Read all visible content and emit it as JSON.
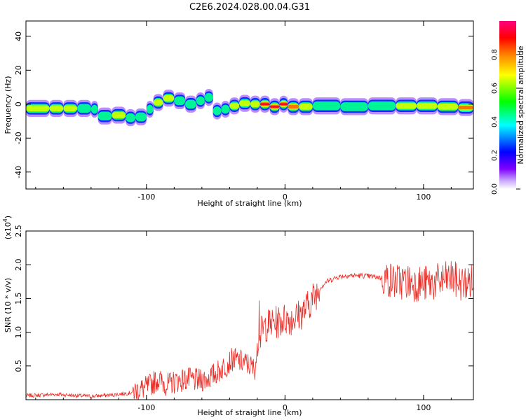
{
  "title": "C2E6.2024.028.00.04.G31",
  "chart_data": [
    {
      "type": "heatmap",
      "xlabel": "Height of straight line (km)",
      "ylabel": "Frequency (Hz)",
      "xlim": [
        -187,
        136
      ],
      "ylim": [
        -50,
        49
      ],
      "x_ticks": [
        -100,
        0,
        100
      ],
      "y_ticks": [
        -40,
        -20,
        0,
        20,
        40
      ],
      "colorbar": {
        "label": "Normalized spectral amplitude",
        "range": [
          0,
          1
        ],
        "ticks": [
          0.0,
          0.2,
          0.4,
          0.6,
          0.8
        ],
        "colors": [
          "#ffffff",
          "#7f00ff",
          "#0000ff",
          "#00ffff",
          "#00ff00",
          "#ffff00",
          "#ff8000",
          "#ff0000",
          "#ff0080"
        ]
      },
      "ridge": [
        {
          "x": -187,
          "y": -2.5,
          "a": 0.55
        },
        {
          "x": -170,
          "y": -2.5,
          "a": 0.55
        },
        {
          "x": -160,
          "y": -2.5,
          "a": 0.7
        },
        {
          "x": -150,
          "y": -2.5,
          "a": 0.5
        },
        {
          "x": -140,
          "y": -3.0,
          "a": 0.45
        },
        {
          "x": -135,
          "y": -7.0,
          "a": 0.45
        },
        {
          "x": -125,
          "y": -6.5,
          "a": 0.6
        },
        {
          "x": -115,
          "y": -8.0,
          "a": 0.5
        },
        {
          "x": -108,
          "y": -7.5,
          "a": 0.45
        },
        {
          "x": -100,
          "y": -3.0,
          "a": 0.45
        },
        {
          "x": -95,
          "y": 1.0,
          "a": 0.55
        },
        {
          "x": -88,
          "y": 3.5,
          "a": 0.55
        },
        {
          "x": -80,
          "y": 2.0,
          "a": 0.5
        },
        {
          "x": -72,
          "y": 0.0,
          "a": 0.5
        },
        {
          "x": -64,
          "y": 2.0,
          "a": 0.5
        },
        {
          "x": -58,
          "y": 4.0,
          "a": 0.45
        },
        {
          "x": -52,
          "y": -4.0,
          "a": 0.45
        },
        {
          "x": -46,
          "y": -3.0,
          "a": 0.5
        },
        {
          "x": -40,
          "y": -1.0,
          "a": 0.55
        },
        {
          "x": -33,
          "y": 0.5,
          "a": 0.6
        },
        {
          "x": -25,
          "y": 0.0,
          "a": 0.65
        },
        {
          "x": -18,
          "y": 0.0,
          "a": 0.92
        },
        {
          "x": -11,
          "y": -1.5,
          "a": 0.9
        },
        {
          "x": -4,
          "y": 0.0,
          "a": 0.92
        },
        {
          "x": 2,
          "y": -1.5,
          "a": 0.85
        },
        {
          "x": 10,
          "y": -1.5,
          "a": 0.7
        },
        {
          "x": 20,
          "y": -1.0,
          "a": 0.5
        },
        {
          "x": 40,
          "y": -1.5,
          "a": 0.48
        },
        {
          "x": 60,
          "y": -1.0,
          "a": 0.5
        },
        {
          "x": 80,
          "y": -1.0,
          "a": 0.6
        },
        {
          "x": 95,
          "y": -1.0,
          "a": 0.6
        },
        {
          "x": 110,
          "y": -1.5,
          "a": 0.55
        },
        {
          "x": 125,
          "y": -2.0,
          "a": 0.8
        },
        {
          "x": 136,
          "y": -2.0,
          "a": 0.6
        }
      ]
    },
    {
      "type": "line",
      "xlabel": "Height of straight line (km)",
      "ylabel": "SNR (10 * v/v)",
      "y_multiplier": "(x10",
      "y_multiplier_exp": "4",
      "y_multiplier_close": ")",
      "xlim": [
        -187,
        136
      ],
      "ylim": [
        0,
        2.5
      ],
      "x_ticks": [
        -100,
        0,
        100
      ],
      "y_ticks": [
        0.5,
        1.0,
        1.5,
        2.0,
        2.5
      ],
      "series": [
        {
          "color": "#e8302a",
          "points": [
            [
              -187,
              0.06
            ],
            [
              -175,
              0.07
            ],
            [
              -165,
              0.08
            ],
            [
              -150,
              0.06
            ],
            [
              -140,
              0.05
            ],
            [
              -125,
              0.07
            ],
            [
              -112,
              0.1
            ],
            [
              -100,
              0.18
            ],
            [
              -92,
              0.3
            ],
            [
              -85,
              0.22
            ],
            [
              -78,
              0.28
            ],
            [
              -70,
              0.3
            ],
            [
              -62,
              0.28
            ],
            [
              -55,
              0.32
            ],
            [
              -48,
              0.42
            ],
            [
              -42,
              0.52
            ],
            [
              -38,
              0.6
            ],
            [
              -34,
              0.58
            ],
            [
              -30,
              0.55
            ],
            [
              -26,
              0.52
            ],
            [
              -22,
              0.45
            ],
            [
              -19,
              0.8
            ],
            [
              -17,
              1.0
            ],
            [
              -14,
              1.1
            ],
            [
              -10,
              1.12
            ],
            [
              -5,
              1.15
            ],
            [
              0,
              1.2
            ],
            [
              5,
              1.2
            ],
            [
              10,
              1.25
            ],
            [
              15,
              1.35
            ],
            [
              20,
              1.5
            ],
            [
              25,
              1.65
            ],
            [
              30,
              1.75
            ],
            [
              38,
              1.82
            ],
            [
              45,
              1.84
            ],
            [
              55,
              1.84
            ],
            [
              65,
              1.82
            ],
            [
              72,
              1.8
            ],
            [
              80,
              1.75
            ],
            [
              88,
              1.75
            ],
            [
              96,
              1.72
            ],
            [
              104,
              1.72
            ],
            [
              112,
              1.75
            ],
            [
              120,
              1.8
            ],
            [
              128,
              1.72
            ],
            [
              136,
              1.75
            ]
          ]
        }
      ]
    }
  ]
}
